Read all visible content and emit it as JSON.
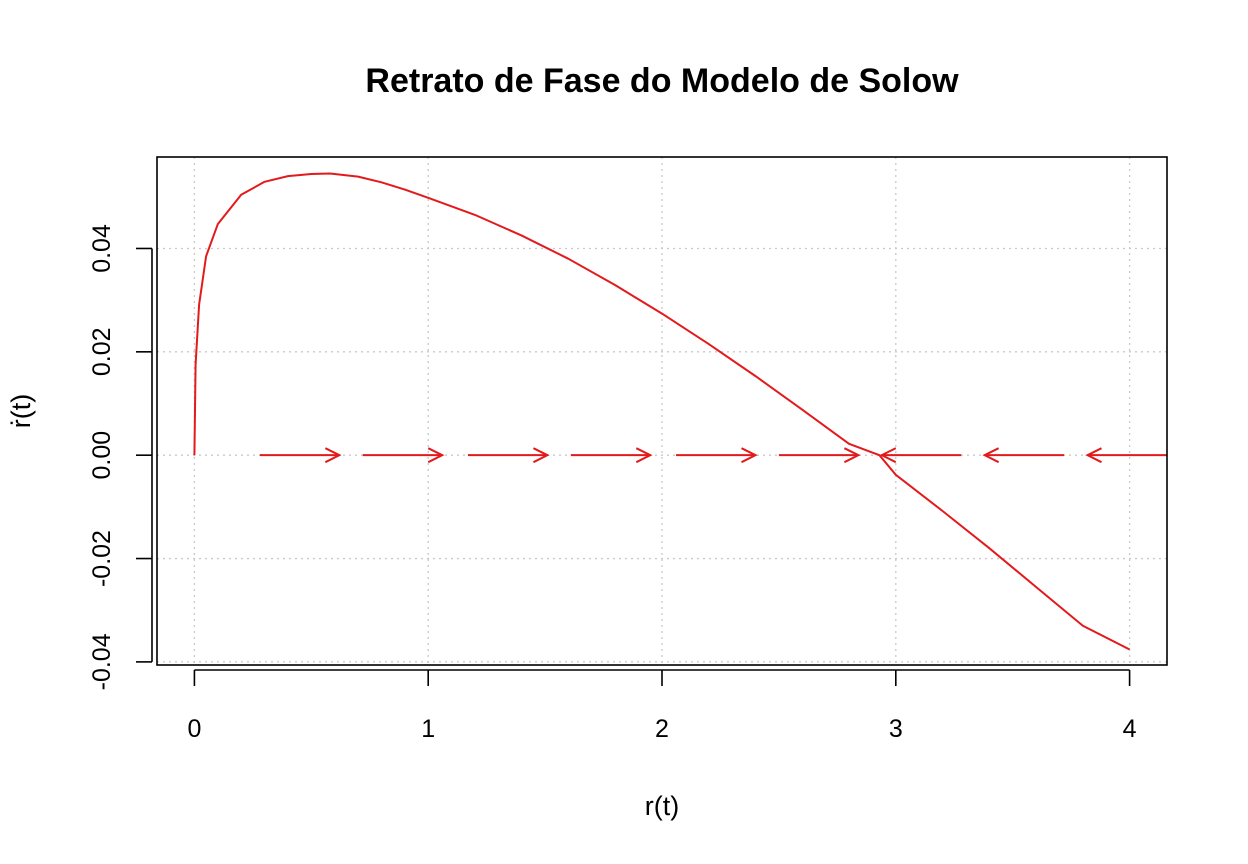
{
  "chart_data": {
    "type": "line",
    "title": "Retrato de Fase do Modelo de Solow",
    "xlabel": "r(t)",
    "ylabel": "ṙ(t)",
    "xlim": [
      -0.16,
      4.16
    ],
    "ylim": [
      -0.0406,
      0.0577
    ],
    "x_ticks": [
      "0",
      "1",
      "2",
      "3",
      "4"
    ],
    "x_tick_values": [
      0,
      1,
      2,
      3,
      4
    ],
    "y_ticks": [
      "-0.04",
      "-0.02",
      "0.00",
      "0.02",
      "0.04"
    ],
    "y_tick_values": [
      -0.04,
      -0.02,
      0.0,
      0.02,
      0.04
    ],
    "grid": true,
    "line_color": "#e31a1c",
    "grid_color": "#c8c8c8",
    "series": [
      {
        "x": [
          0,
          0.005,
          0.02,
          0.05,
          0.1,
          0.2,
          0.3,
          0.4,
          0.5,
          0.58,
          0.7,
          0.8,
          0.9,
          1.0,
          1.2,
          1.4,
          1.6,
          1.8,
          2.0,
          2.2,
          2.4,
          2.6,
          2.8,
          2.93,
          3.0,
          3.2,
          3.4,
          3.6,
          3.8,
          4.0
        ],
        "y": [
          0.0,
          0.0175,
          0.0291,
          0.0385,
          0.0447,
          0.0504,
          0.0529,
          0.054,
          0.0544,
          0.0545,
          0.0539,
          0.0528,
          0.0514,
          0.0498,
          0.0465,
          0.0425,
          0.038,
          0.0329,
          0.0274,
          0.0215,
          0.0153,
          0.0088,
          0.0022,
          0.0,
          -0.0038,
          -0.0108,
          -0.018,
          -0.0255,
          -0.033,
          -0.0376
        ]
      }
    ],
    "arrows": [
      {
        "x_start": 0.28,
        "x_end": 0.62
      },
      {
        "x_start": 0.72,
        "x_end": 1.06
      },
      {
        "x_start": 1.17,
        "x_end": 1.51
      },
      {
        "x_start": 1.61,
        "x_end": 1.95
      },
      {
        "x_start": 2.06,
        "x_end": 2.4
      },
      {
        "x_start": 2.5,
        "x_end": 2.84
      },
      {
        "x_start": 3.28,
        "x_end": 2.94
      },
      {
        "x_start": 3.72,
        "x_end": 3.38
      },
      {
        "x_start": 4.16,
        "x_end": 3.82
      }
    ]
  }
}
